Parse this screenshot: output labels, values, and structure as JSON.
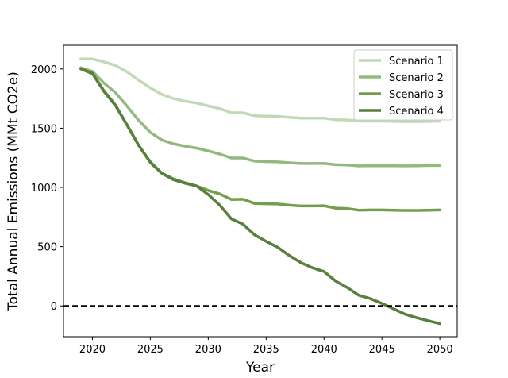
{
  "chart_data": {
    "type": "line",
    "title": "",
    "xlabel": "Year",
    "ylabel": "Total Annual Emissions (MMt CO2e)",
    "xlim": [
      2017.5,
      2051.5
    ],
    "ylim": [
      -260,
      2200
    ],
    "xticks": [
      2020,
      2025,
      2030,
      2035,
      2040,
      2045,
      2050
    ],
    "yticks": [
      0,
      500,
      1000,
      1500,
      2000
    ],
    "grid": false,
    "legend_position": "top-right",
    "reference_line": {
      "y": 0,
      "style": "dashed",
      "color": "#000000"
    },
    "x": [
      2019,
      2020,
      2021,
      2022,
      2023,
      2024,
      2025,
      2026,
      2027,
      2028,
      2029,
      2030,
      2031,
      2032,
      2033,
      2034,
      2035,
      2036,
      2037,
      2038,
      2039,
      2040,
      2041,
      2042,
      2043,
      2044,
      2045,
      2046,
      2047,
      2048,
      2049,
      2050
    ],
    "series": [
      {
        "name": "Scenario 1",
        "color": "#c2d9b8",
        "values": [
          2085,
          2085,
          2060,
          2030,
          1975,
          1905,
          1840,
          1785,
          1750,
          1728,
          1712,
          1688,
          1665,
          1630,
          1630,
          1605,
          1602,
          1600,
          1592,
          1585,
          1585,
          1585,
          1572,
          1570,
          1560,
          1560,
          1560,
          1558,
          1556,
          1556,
          1557,
          1560
        ]
      },
      {
        "name": "Scenario 2",
        "color": "#94b97e",
        "values": [
          2010,
          1980,
          1880,
          1800,
          1685,
          1565,
          1465,
          1400,
          1368,
          1348,
          1332,
          1308,
          1282,
          1248,
          1248,
          1222,
          1218,
          1215,
          1208,
          1202,
          1202,
          1203,
          1192,
          1190,
          1182,
          1183,
          1183,
          1183,
          1182,
          1183,
          1185,
          1185
        ]
      },
      {
        "name": "Scenario 3",
        "color": "#749e4e",
        "values": [
          2005,
          1965,
          1815,
          1695,
          1525,
          1355,
          1215,
          1120,
          1072,
          1040,
          1012,
          975,
          945,
          898,
          900,
          865,
          862,
          860,
          850,
          843,
          843,
          845,
          825,
          822,
          808,
          810,
          810,
          808,
          806,
          806,
          808,
          810
        ]
      },
      {
        "name": "Scenario 4",
        "color": "#587f3c",
        "values": [
          2000,
          1960,
          1810,
          1690,
          1525,
          1355,
          1210,
          1118,
          1065,
          1035,
          1012,
          940,
          850,
          735,
          690,
          600,
          545,
          495,
          425,
          365,
          322,
          290,
          210,
          155,
          90,
          62,
          20,
          -25,
          -70,
          -100,
          -125,
          -150
        ]
      }
    ]
  }
}
